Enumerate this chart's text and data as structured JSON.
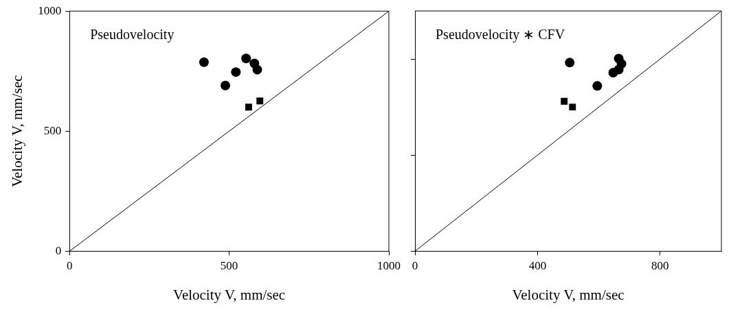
{
  "chart_data": [
    {
      "type": "scatter",
      "title": "Pseudovelocity",
      "xlabel": "Velocity V, mm/sec",
      "ylabel": "Velocity V, mm/sec",
      "xlim": [
        0,
        1000
      ],
      "ylim": [
        0,
        1000
      ],
      "xticks": [
        0,
        500,
        1000
      ],
      "yticks": [
        0,
        500,
        1000
      ],
      "grid": false,
      "legend": false,
      "series": [
        {
          "type": "line",
          "color": "#000000",
          "marker": "none",
          "x": [
            0,
            1000
          ],
          "values": [
            0,
            1000
          ]
        },
        {
          "type": "scatter",
          "color": "#000000",
          "marker": "circle",
          "x": [
            421,
            488,
            521,
            553,
            579,
            588
          ],
          "values": [
            787,
            690,
            746,
            803,
            782,
            756
          ]
        },
        {
          "type": "scatter",
          "color": "#000000",
          "marker": "square",
          "x": [
            561,
            596
          ],
          "values": [
            600,
            626
          ]
        }
      ]
    },
    {
      "type": "scatter",
      "title": "Pseudovelocity ∗ CFV",
      "xlabel": "Velocity V, mm/sec",
      "xlim": [
        0,
        1000
      ],
      "ylim": [
        0,
        1000
      ],
      "xticks": [
        0,
        400,
        800
      ],
      "yticks": [
        0,
        400,
        800
      ],
      "grid": false,
      "legend": false,
      "tick_labels": "x",
      "series": [
        {
          "type": "line",
          "color": "#000000",
          "marker": "none",
          "x": [
            0,
            1000
          ],
          "values": [
            0,
            1000
          ]
        },
        {
          "type": "scatter",
          "color": "#000000",
          "marker": "circle",
          "x": [
            505,
            595,
            647,
            665,
            674,
            665
          ],
          "values": [
            785,
            688,
            743,
            802,
            780,
            756
          ]
        },
        {
          "type": "scatter",
          "color": "#000000",
          "marker": "square",
          "x": [
            487,
            514
          ],
          "values": [
            624,
            600
          ]
        }
      ]
    }
  ]
}
